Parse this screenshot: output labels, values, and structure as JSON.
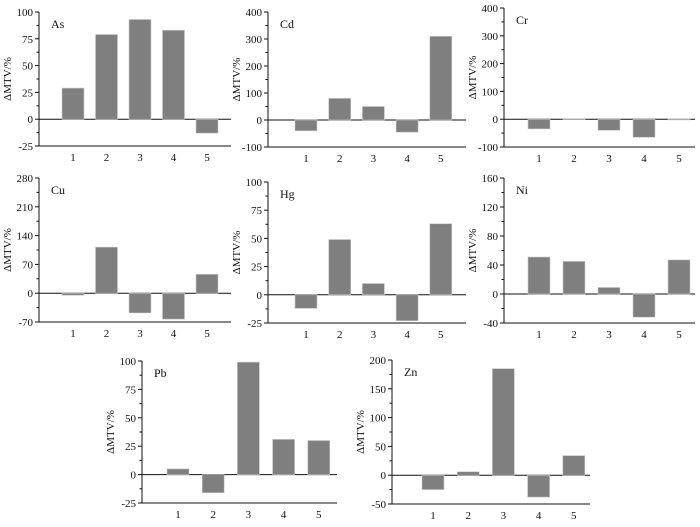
{
  "chart_data": [
    {
      "type": "bar",
      "title": "As",
      "ylabel": "ΔMTV/%",
      "categories": [
        "1",
        "2",
        "3",
        "4",
        "5"
      ],
      "values": [
        29,
        79,
        93,
        83,
        -13
      ],
      "ylim": [
        -25,
        100
      ],
      "yticks": [
        -25,
        0,
        25,
        50,
        75,
        100
      ]
    },
    {
      "type": "bar",
      "title": "Cd",
      "ylabel": "ΔMTV/%",
      "categories": [
        "1",
        "2",
        "3",
        "4",
        "5"
      ],
      "values": [
        -40,
        80,
        50,
        -45,
        310
      ],
      "ylim": [
        -100,
        400
      ],
      "yticks": [
        -100,
        0,
        100,
        200,
        300,
        400
      ]
    },
    {
      "type": "bar",
      "title": "Cr",
      "ylabel": "ΔMTV/%",
      "categories": [
        "1",
        "2",
        "3",
        "4",
        "5"
      ],
      "values": [
        -35,
        2,
        -40,
        -65,
        1
      ],
      "ylim": [
        -100,
        400
      ],
      "yticks": [
        -100,
        0,
        100,
        200,
        300,
        400
      ]
    },
    {
      "type": "bar",
      "title": "Cu",
      "ylabel": "ΔMTV/%",
      "categories": [
        "1",
        "2",
        "3",
        "4",
        "5"
      ],
      "values": [
        -5,
        112,
        -48,
        -63,
        46
      ],
      "ylim": [
        -70,
        280
      ],
      "yticks": [
        -70,
        0,
        70,
        140,
        210,
        280
      ]
    },
    {
      "type": "bar",
      "title": "Hg",
      "ylabel": "ΔMTV/%",
      "categories": [
        "1",
        "2",
        "3",
        "4",
        "5"
      ],
      "values": [
        -12,
        49,
        10,
        -23,
        63
      ],
      "ylim": [
        -25,
        100
      ],
      "yticks": [
        -25,
        0,
        25,
        50,
        75,
        100
      ]
    },
    {
      "type": "bar",
      "title": "Ni",
      "ylabel": "ΔMTV/%",
      "categories": [
        "1",
        "2",
        "3",
        "4",
        "5"
      ],
      "values": [
        51,
        45,
        9,
        -32,
        47
      ],
      "ylim": [
        -40,
        160
      ],
      "yticks": [
        -40,
        0,
        40,
        80,
        120,
        160
      ]
    },
    {
      "type": "bar",
      "title": "Pb",
      "ylabel": "ΔMTV/%",
      "categories": [
        "1",
        "2",
        "3",
        "4",
        "5"
      ],
      "values": [
        5,
        -16,
        99,
        31,
        30
      ],
      "ylim": [
        -25,
        100
      ],
      "yticks": [
        -25,
        0,
        25,
        50,
        75,
        100
      ]
    },
    {
      "type": "bar",
      "title": "Zn",
      "ylabel": "ΔMTV/%",
      "categories": [
        "1",
        "2",
        "3",
        "4",
        "5"
      ],
      "values": [
        -25,
        6,
        185,
        -38,
        34
      ],
      "ylim": [
        -50,
        200
      ],
      "yticks": [
        -50,
        0,
        50,
        100,
        150,
        200
      ]
    }
  ],
  "colors": {
    "bar": "#7f7f7f",
    "axis": "#111111"
  }
}
